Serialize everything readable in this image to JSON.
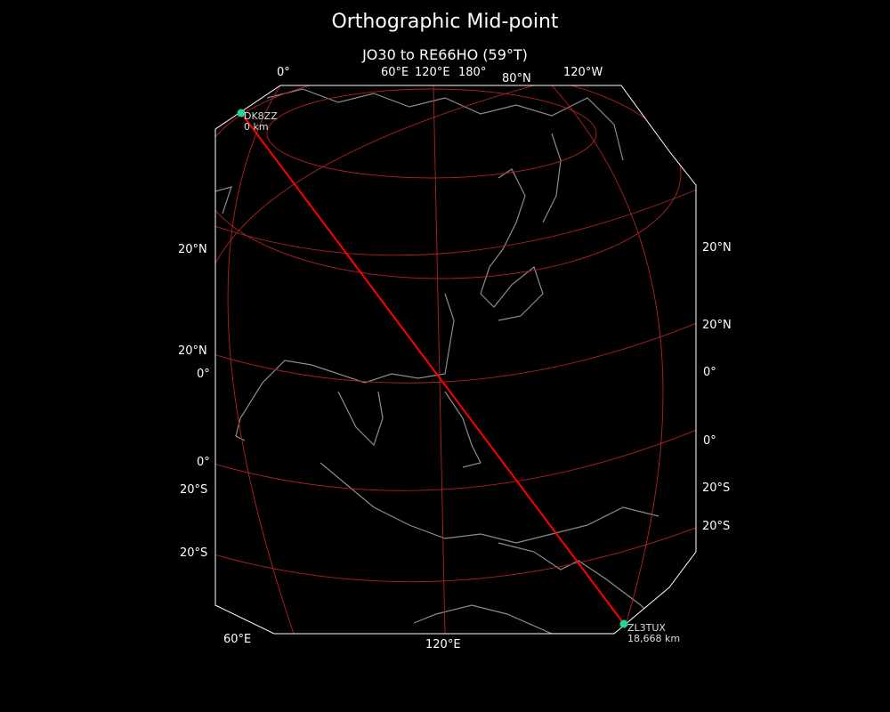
{
  "title": "Orthographic Mid-point",
  "subtitle": "JO30 to RE66HO (59°T)",
  "top_labels": [
    "0°",
    "60°E",
    "120°E",
    "180°",
    "80°N",
    "120°W"
  ],
  "left_labels": [
    "20°N",
    "20°N",
    "0°",
    "0°",
    "20°S",
    "20°S"
  ],
  "right_labels": [
    "20°N",
    "20°N",
    "0°",
    "0°",
    "20°S",
    "20°S"
  ],
  "bottom_labels": [
    "60°E",
    "120°E"
  ],
  "start": {
    "call": "DK8ZZ",
    "dist": "0 km"
  },
  "end": {
    "call": "ZL3TUX",
    "dist": "18,668 km"
  },
  "colors": {
    "route": "#ff0000",
    "graticule": "#b22222",
    "coast": "#8c8c8c",
    "station": "#1fd69a",
    "frame": "#ffffff"
  }
}
